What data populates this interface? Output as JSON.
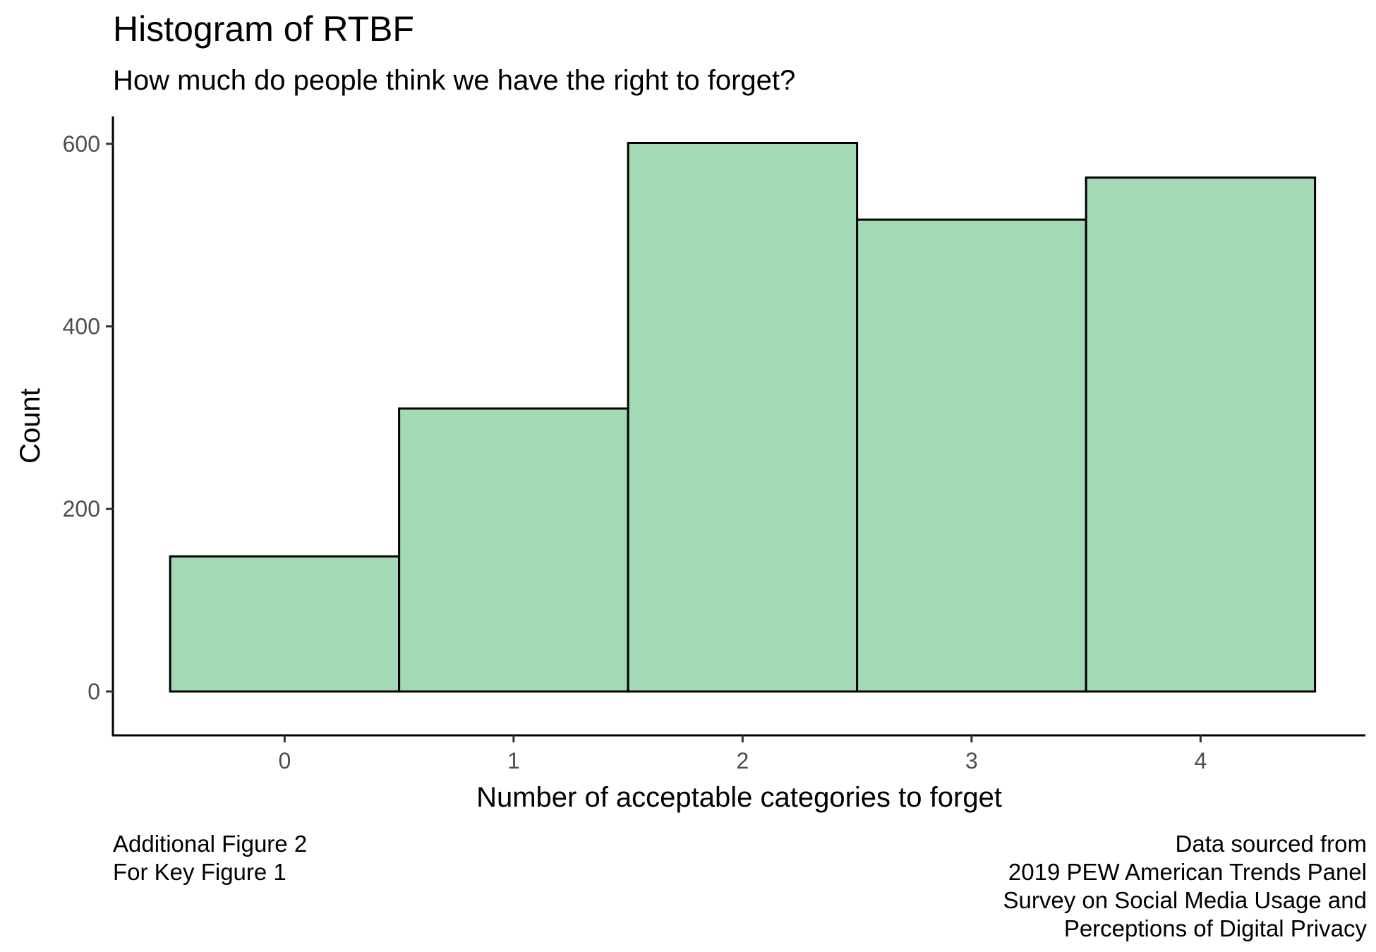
{
  "chart_data": {
    "type": "bar",
    "title": "Histogram of RTBF",
    "subtitle": "How much do people think we have the right to forget?",
    "xlabel": "Number of acceptable categories to forget",
    "ylabel": "Count",
    "categories": [
      "0",
      "1",
      "2",
      "3",
      "4"
    ],
    "values": [
      148,
      310,
      601,
      517,
      563
    ],
    "xlim": [
      -0.75,
      4.72
    ],
    "ylim": [
      -48,
      630
    ],
    "x_ticks": [
      0,
      1,
      2,
      3,
      4
    ],
    "y_ticks": [
      0,
      200,
      400,
      600
    ],
    "bar_fill": "#a3d9b5",
    "bar_outline": "#000000",
    "grid": false,
    "legend": "none"
  },
  "captions": {
    "left": [
      "Additional Figure 2",
      "For Key Figure 1"
    ],
    "right": [
      "Data sourced from",
      "2019 PEW American Trends Panel",
      "Survey on Social Media Usage and",
      "Perceptions of Digital Privacy"
    ]
  }
}
